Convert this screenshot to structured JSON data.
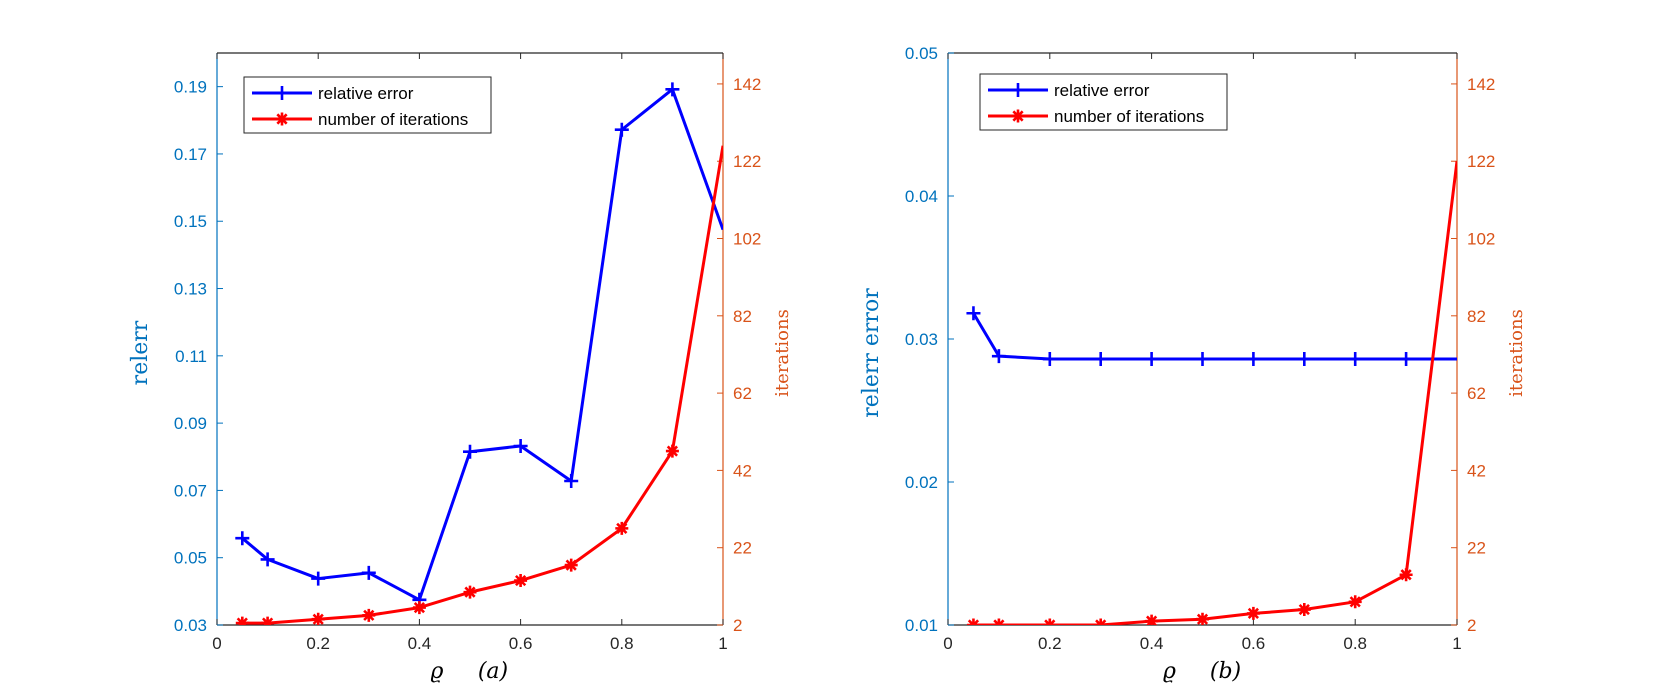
{
  "colors": {
    "left_axis": "#0072BD",
    "right_axis": "#D95319",
    "relerr_line": "#0000FF",
    "iter_line": "#FF0000",
    "frame": "#262626"
  },
  "chart_data": [
    {
      "type": "line",
      "panel_label": "(a)",
      "xlabel": "ϱ",
      "ylabel_left": "relerr",
      "ylabel_right": "iterations",
      "xlim": [
        0,
        1
      ],
      "xticks": [
        0,
        0.2,
        0.4,
        0.6,
        0.8,
        1
      ],
      "xtick_labels": [
        "0",
        "0.2",
        "0.4",
        "0.6",
        "0.8",
        "1"
      ],
      "ylim_left": [
        0.03,
        0.2
      ],
      "yticks_left": [
        0.03,
        0.05,
        0.07,
        0.09,
        0.11,
        0.13,
        0.15,
        0.17,
        0.19
      ],
      "ytick_labels_left": [
        "0.03",
        "0.05",
        "0.07",
        "0.09",
        "0.11",
        "0.13",
        "0.15",
        "0.17",
        "0.19"
      ],
      "ylim_right": [
        2,
        150
      ],
      "yticks_right": [
        2,
        22,
        42,
        62,
        82,
        102,
        122,
        142
      ],
      "ytick_labels_right": [
        "2",
        "22",
        "42",
        "62",
        "82",
        "102",
        "122",
        "142"
      ],
      "legend_position": "top-left",
      "series": [
        {
          "name": "relative error",
          "axis": "left",
          "marker": "plus",
          "x": [
            0.05,
            0.1,
            0.2,
            0.3,
            0.4,
            0.5,
            0.6,
            0.7,
            0.8,
            0.9,
            1.0
          ],
          "values": [
            0.0558,
            0.0495,
            0.0438,
            0.0455,
            0.0375,
            0.0815,
            0.0832,
            0.0728,
            0.1772,
            0.1892,
            0.1475
          ]
        },
        {
          "name": "number of iterations",
          "axis": "right",
          "marker": "asterisk",
          "x": [
            0.05,
            0.1,
            0.2,
            0.3,
            0.4,
            0.5,
            0.6,
            0.7,
            0.8,
            0.9,
            1.0
          ],
          "values": [
            2.5,
            2.5,
            3.5,
            4.5,
            6.5,
            10.5,
            13.5,
            17.5,
            27,
            47,
            126
          ]
        }
      ]
    },
    {
      "type": "line",
      "panel_label": "(b)",
      "xlabel": "ϱ",
      "ylabel_left": "relerr error",
      "ylabel_right": "iterations",
      "xlim": [
        0,
        1
      ],
      "xticks": [
        0,
        0.2,
        0.4,
        0.6,
        0.8,
        1
      ],
      "xtick_labels": [
        "0",
        "0.2",
        "0.4",
        "0.6",
        "0.8",
        "1"
      ],
      "ylim_left": [
        0.01,
        0.05
      ],
      "yticks_left": [
        0.01,
        0.02,
        0.03,
        0.04,
        0.05
      ],
      "ytick_labels_left": [
        "0.01",
        "0.02",
        "0.03",
        "0.04",
        "0.05"
      ],
      "ylim_right": [
        2,
        150
      ],
      "yticks_right": [
        2,
        22,
        42,
        62,
        82,
        102,
        122,
        142
      ],
      "ytick_labels_right": [
        "2",
        "22",
        "42",
        "62",
        "82",
        "102",
        "122",
        "142"
      ],
      "legend_position": "top-left",
      "series": [
        {
          "name": "relative error",
          "axis": "left",
          "marker": "plus",
          "x": [
            0.05,
            0.1,
            0.2,
            0.3,
            0.4,
            0.5,
            0.6,
            0.7,
            0.8,
            0.9,
            1.0
          ],
          "values": [
            0.0318,
            0.0288,
            0.0286,
            0.0286,
            0.0286,
            0.0286,
            0.0286,
            0.0286,
            0.0286,
            0.0286,
            0.0286
          ]
        },
        {
          "name": "number of iterations",
          "axis": "right",
          "marker": "asterisk",
          "x": [
            0.05,
            0.1,
            0.2,
            0.3,
            0.4,
            0.5,
            0.6,
            0.7,
            0.8,
            0.9,
            1.0
          ],
          "values": [
            2,
            2,
            2,
            2,
            3,
            3.5,
            5,
            6,
            8,
            15,
            122
          ]
        }
      ]
    }
  ]
}
